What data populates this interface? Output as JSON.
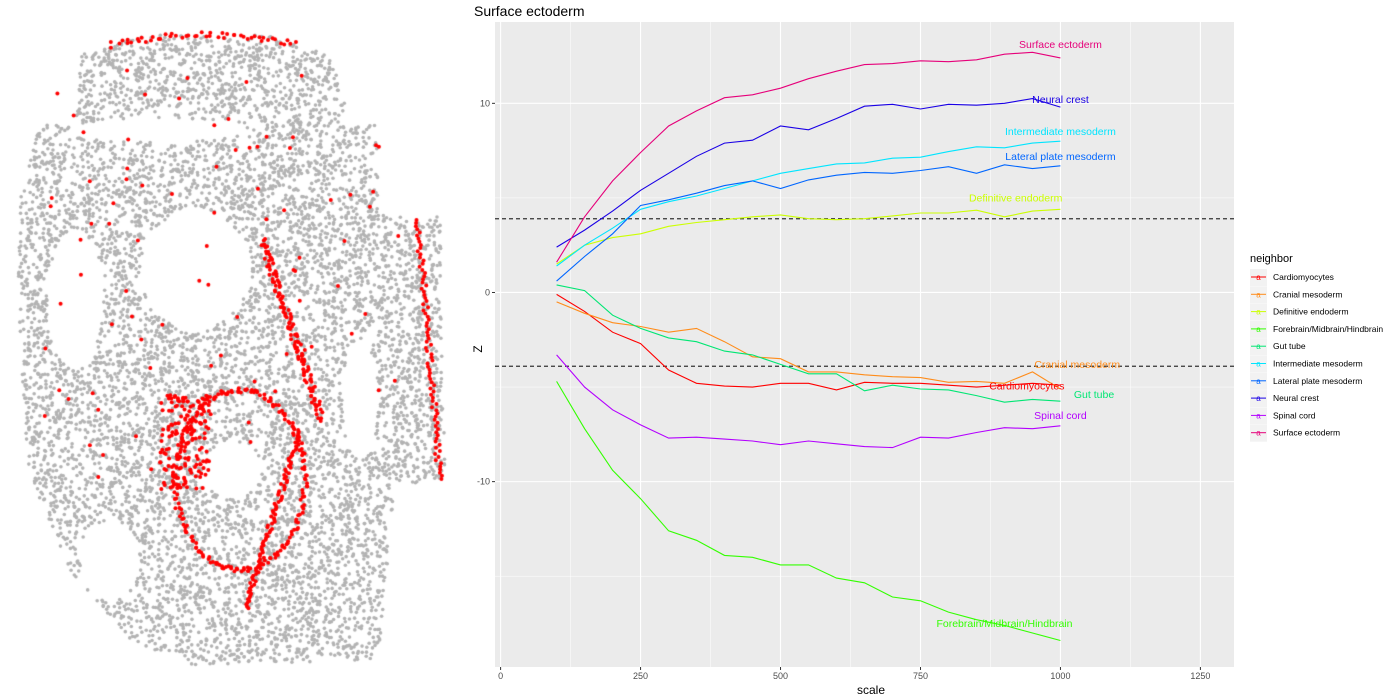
{
  "colors": {
    "panel_bg": "#ebebeb",
    "grid": "#ffffff",
    "cells_background": "#b3b3b3",
    "cells_highlighted": "#ff0000",
    "threshold_line": "#333333"
  },
  "legend": {
    "title": "neighbor",
    "key_glyph": "a"
  },
  "chart_data": {
    "type": "line",
    "title": "Surface ectoderm",
    "xlabel": "scale",
    "ylabel": "Z",
    "xlim": [
      -10,
      1310
    ],
    "ylim": [
      -19.8,
      14.3
    ],
    "xticks": [
      0,
      250,
      500,
      750,
      1000,
      1250
    ],
    "yticks": [
      -10,
      0,
      10
    ],
    "grid": true,
    "legend_position": "right",
    "hlines": [
      3.9,
      -3.9
    ],
    "x": [
      100,
      150,
      200,
      250,
      300,
      350,
      400,
      450,
      500,
      550,
      600,
      650,
      700,
      750,
      800,
      850,
      900,
      950,
      1000
    ],
    "series": [
      {
        "name": "Cardiomyocytes",
        "color": "#ff0000",
        "label_x": 940,
        "label_y": -4.95,
        "values": [
          -0.1,
          -1.0,
          -2.1,
          -2.7,
          -4.1,
          -4.8,
          -4.95,
          -5.0,
          -4.8,
          -4.8,
          -5.15,
          -4.75,
          -4.8,
          -4.8,
          -4.9,
          -5.0,
          -4.9,
          -4.8,
          -4.9
        ]
      },
      {
        "name": "Cranial mesoderm",
        "color": "#ff8c1a",
        "label_x": 1030,
        "label_y": -3.8,
        "values": [
          -0.5,
          -1.1,
          -1.6,
          -1.8,
          -2.1,
          -1.9,
          -2.6,
          -3.4,
          -3.5,
          -4.2,
          -4.2,
          -4.35,
          -4.45,
          -4.5,
          -4.75,
          -4.7,
          -4.8,
          -4.2,
          -5.1
        ]
      },
      {
        "name": "Definitive endoderm",
        "color": "#ccff00",
        "label_x": 920,
        "label_y": 5.0,
        "values": [
          1.5,
          2.5,
          2.9,
          3.1,
          3.5,
          3.7,
          3.85,
          4.0,
          4.1,
          3.9,
          3.85,
          3.9,
          4.05,
          4.2,
          4.2,
          4.35,
          4.0,
          4.3,
          4.4
        ]
      },
      {
        "name": "Forebrain/Midbrain/Hindbrain",
        "color": "#33ff00",
        "label_x": 900,
        "label_y": -17.5,
        "values": [
          -4.7,
          -7.2,
          -9.4,
          -10.9,
          -12.6,
          -13.1,
          -13.9,
          -14.0,
          -14.4,
          -14.4,
          -15.1,
          -15.35,
          -16.1,
          -16.3,
          -16.9,
          -17.3,
          -17.6,
          -18.0,
          -18.4
        ]
      },
      {
        "name": "Gut tube",
        "color": "#00e673",
        "label_x": 1060,
        "label_y": -5.4,
        "values": [
          0.4,
          0.1,
          -1.2,
          -1.9,
          -2.4,
          -2.6,
          -3.1,
          -3.3,
          -3.8,
          -4.3,
          -4.3,
          -5.2,
          -4.9,
          -5.1,
          -5.15,
          -5.45,
          -5.8,
          -5.65,
          -5.75
        ]
      },
      {
        "name": "Intermediate mesoderm",
        "color": "#00e5ff",
        "label_x": 1000,
        "label_y": 8.5,
        "values": [
          1.4,
          2.5,
          3.4,
          4.4,
          4.8,
          5.1,
          5.5,
          5.9,
          6.3,
          6.55,
          6.8,
          6.85,
          7.1,
          7.15,
          7.45,
          7.7,
          7.65,
          7.9,
          8.0
        ]
      },
      {
        "name": "Lateral plate mesoderm",
        "color": "#0066ff",
        "label_x": 1000,
        "label_y": 7.2,
        "values": [
          0.6,
          1.9,
          3.1,
          4.6,
          4.9,
          5.25,
          5.65,
          5.9,
          5.5,
          5.95,
          6.2,
          6.35,
          6.3,
          6.45,
          6.65,
          6.3,
          6.75,
          6.55,
          6.7
        ]
      },
      {
        "name": "Neural crest",
        "color": "#1a00e6",
        "label_x": 1000,
        "label_y": 10.2,
        "values": [
          2.4,
          3.3,
          4.3,
          5.4,
          6.3,
          7.2,
          7.9,
          8.05,
          8.8,
          8.6,
          9.2,
          9.85,
          9.95,
          9.7,
          9.95,
          9.9,
          10.0,
          10.25,
          9.8
        ]
      },
      {
        "name": "Spinal cord",
        "color": "#b300ff",
        "label_x": 1000,
        "label_y": -6.5,
        "values": [
          -3.3,
          -5.0,
          -6.2,
          -7.0,
          -7.7,
          -7.65,
          -7.75,
          -7.85,
          -8.05,
          -7.85,
          -8.0,
          -8.15,
          -8.2,
          -7.65,
          -7.7,
          -7.4,
          -7.15,
          -7.2,
          -7.05
        ]
      },
      {
        "name": "Surface ectoderm",
        "color": "#e6007a",
        "label_x": 1000,
        "label_y": 13.1,
        "values": [
          1.6,
          4.0,
          5.9,
          7.4,
          8.8,
          9.6,
          10.3,
          10.45,
          10.8,
          11.3,
          11.7,
          12.05,
          12.1,
          12.25,
          12.2,
          12.3,
          12.6,
          12.7,
          12.4
        ]
      }
    ]
  }
}
